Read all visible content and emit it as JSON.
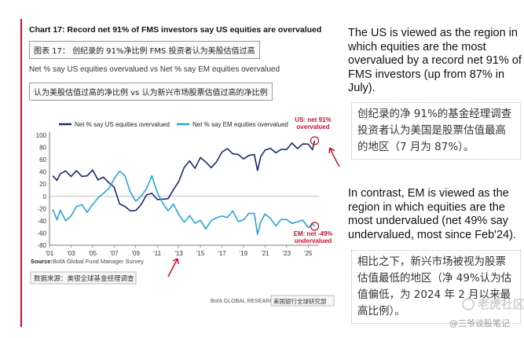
{
  "chart_data": {
    "type": "line",
    "title": "Chart 17: Record net 91% of FMS investors say US equities are overvalued",
    "title_cn": "图表 17： 创纪录的 91%净比例 FMS 投资者认为美股估值过高",
    "subtitle": "Net % say US equities overvalued vs Net % say EM equities overvalued",
    "subtitle_cn": "认为美股估值过高的净比例 vs 认为新兴市场股票估值过高的净比例",
    "x_tick_labels": [
      "'01",
      "'03",
      "'05",
      "'07",
      "'09",
      "'11",
      "'13",
      "'15",
      "'17",
      "'19",
      "'21",
      "'23",
      "'25"
    ],
    "x_tick_years": [
      2001,
      2003,
      2005,
      2007,
      2009,
      2011,
      2013,
      2015,
      2017,
      2019,
      2021,
      2023,
      2025
    ],
    "xlim": [
      2001,
      2026
    ],
    "ylim": [
      -80,
      100
    ],
    "y_ticks": [
      -80,
      -60,
      -40,
      -20,
      0,
      20,
      40,
      60,
      80,
      100
    ],
    "grid": false,
    "legend_position": "top",
    "series": [
      {
        "name": "Net % say US equities overvalued",
        "color": "#1b2a6b",
        "x": [
          2001.3,
          2001.7,
          2002.0,
          2002.5,
          2003.0,
          2003.5,
          2004.0,
          2004.5,
          2005.0,
          2005.5,
          2006.0,
          2006.5,
          2007.0,
          2007.5,
          2008.0,
          2008.5,
          2009.0,
          2009.5,
          2010.0,
          2010.5,
          2011.0,
          2011.5,
          2012.0,
          2012.5,
          2013.0,
          2013.5,
          2014.0,
          2014.5,
          2015.0,
          2015.5,
          2016.0,
          2016.5,
          2017.0,
          2017.5,
          2018.0,
          2018.5,
          2019.0,
          2019.5,
          2020.0,
          2020.3,
          2020.6,
          2021.0,
          2021.5,
          2022.0,
          2022.5,
          2023.0,
          2023.5,
          2024.0,
          2024.5,
          2025.0,
          2025.4,
          2025.6
        ],
        "values": [
          30,
          25,
          38,
          45,
          30,
          42,
          35,
          30,
          42,
          28,
          35,
          20,
          15,
          -10,
          -20,
          -25,
          -22,
          -10,
          0,
          5,
          -3,
          -8,
          -5,
          12,
          28,
          45,
          58,
          48,
          60,
          55,
          48,
          60,
          70,
          78,
          72,
          65,
          60,
          68,
          72,
          40,
          65,
          78,
          75,
          70,
          78,
          80,
          85,
          78,
          88,
          82,
          75,
          91
        ]
      },
      {
        "name": "Net % say EM equities overvalued",
        "color": "#29a3d9",
        "x": [
          2001.3,
          2001.7,
          2002.0,
          2002.5,
          2003.0,
          2003.5,
          2004.0,
          2004.5,
          2005.0,
          2005.5,
          2006.0,
          2006.5,
          2007.0,
          2007.5,
          2008.0,
          2008.5,
          2009.0,
          2009.5,
          2010.0,
          2010.5,
          2011.0,
          2011.5,
          2012.0,
          2012.5,
          2013.0,
          2013.5,
          2014.0,
          2014.5,
          2015.0,
          2015.5,
          2016.0,
          2016.5,
          2017.0,
          2017.5,
          2018.0,
          2018.5,
          2019.0,
          2019.5,
          2020.0,
          2020.3,
          2020.6,
          2021.0,
          2021.5,
          2022.0,
          2022.5,
          2023.0,
          2023.5,
          2024.0,
          2024.5,
          2025.0,
          2025.4,
          2025.6
        ],
        "values": [
          -20,
          -35,
          -25,
          -40,
          -30,
          -20,
          -15,
          -25,
          -10,
          -5,
          5,
          15,
          25,
          40,
          35,
          10,
          -10,
          0,
          15,
          30,
          5,
          -10,
          -20,
          -15,
          -30,
          -40,
          -35,
          -45,
          -38,
          -50,
          -42,
          -35,
          -30,
          -38,
          -25,
          -40,
          -35,
          -30,
          -28,
          -60,
          -45,
          -30,
          -35,
          -45,
          -40,
          -38,
          -42,
          -45,
          -40,
          -50,
          -42,
          -49
        ]
      }
    ],
    "annotations": [
      {
        "text_line1": "US: net 91%",
        "text_line2": "overvalued",
        "color": "#c8102e",
        "series": 0
      },
      {
        "text_line1": "EM: net -49%",
        "text_line2": "undervalued",
        "color": "#c8102e",
        "series": 1
      }
    ]
  },
  "source": {
    "label": "Source:",
    "text": "BofA Global Fund Manager Survey",
    "cn": "数据来源：美银全球基金经理调查",
    "brand": "BofA GLOBAL RESEARCH",
    "brand_cn": "美国银行全球研究部"
  },
  "notes": {
    "us_en": "The US is viewed as the region in which equities are the most overvalued by a record net 91% of FMS investors (up from 87% in July).",
    "us_cn": "创纪录的净 91%的基金经理调查投资者认为美国是股票估值最高的地区（7 月为 87%）。",
    "em_en": "In contrast, EM is viewed as the region in which equities are the most undervalued (net 49% say undervalued, most since Feb'24).",
    "em_cn": "相比之下，新兴市场被视为股票估值最低的地区（净 49%认为估值偏低，为 2024 年 2 月以来最高比例）。"
  },
  "watermark": {
    "line1": "老虎社区",
    "line2": "@三爷谈股笔记"
  }
}
